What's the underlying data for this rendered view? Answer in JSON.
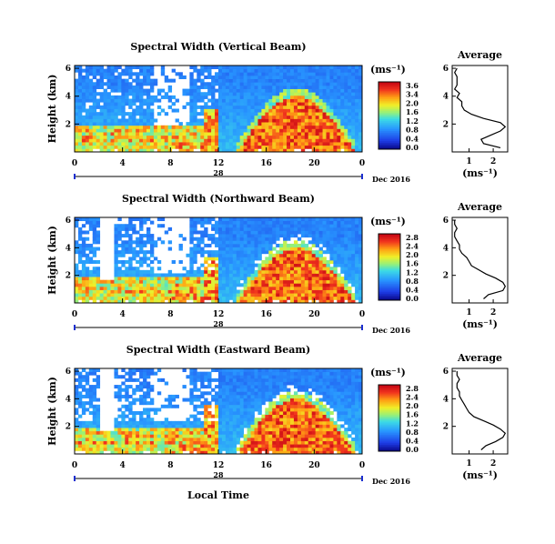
{
  "chart_data": [
    {
      "type": "heatmap",
      "title": "Spectral Width (Vertical Beam)",
      "ylabel": "Height (km)",
      "y_ticks": [
        "6",
        "4",
        "2"
      ],
      "x_ticks": [
        "0",
        "4",
        "8",
        "12",
        "16",
        "20",
        "0"
      ],
      "day_label": "28",
      "date_label": "Dec 2016",
      "colorbar_unit": "(ms⁻¹)",
      "colorbar_ticks": [
        "3.6",
        "3.4",
        "2.0",
        "1.6",
        "1.2",
        "0.8",
        "0.4",
        "0.0"
      ],
      "colorbar_range": [
        0.0,
        3.6
      ],
      "average": {
        "title": "Average",
        "y_ticks": [
          "6",
          "4",
          "2"
        ],
        "x_ticks": [
          "1",
          "2"
        ],
        "xlabel": "(ms⁻¹)",
        "height_km": [
          0.3,
          0.6,
          0.9,
          1.2,
          1.5,
          1.8,
          2.1,
          2.4,
          2.7,
          3.0,
          3.3,
          3.6,
          3.9,
          4.2,
          4.5,
          4.8,
          5.1,
          5.4,
          5.7,
          6.0
        ],
        "values": [
          2.3,
          1.6,
          1.5,
          1.9,
          2.3,
          2.5,
          2.3,
          1.6,
          1.1,
          0.8,
          0.7,
          0.7,
          0.5,
          0.6,
          0.4,
          0.5,
          0.5,
          0.5,
          0.4,
          0.5
        ]
      }
    },
    {
      "type": "heatmap",
      "title": "Spectral Width (Northward Beam)",
      "ylabel": "Height (km)",
      "y_ticks": [
        "6",
        "4",
        "2"
      ],
      "x_ticks": [
        "0",
        "4",
        "8",
        "12",
        "16",
        "20",
        "0"
      ],
      "day_label": "28",
      "date_label": "Dec 2016",
      "colorbar_unit": "(ms⁻¹)",
      "colorbar_ticks": [
        "2.8",
        "2.4",
        "2.0",
        "1.6",
        "1.2",
        "0.8",
        "0.4",
        "0.0"
      ],
      "colorbar_range": [
        0.0,
        2.8
      ],
      "average": {
        "title": "Average",
        "y_ticks": [
          "6",
          "4",
          "2"
        ],
        "x_ticks": [
          "1",
          "2"
        ],
        "xlabel": "(ms⁻¹)",
        "height_km": [
          0.3,
          0.6,
          0.9,
          1.2,
          1.5,
          1.8,
          2.1,
          2.4,
          2.7,
          3.0,
          3.3,
          3.6,
          3.9,
          4.2,
          4.5,
          4.8,
          5.1,
          5.4,
          5.7,
          6.0
        ],
        "values": [
          1.6,
          1.8,
          2.4,
          2.5,
          2.4,
          2.1,
          1.7,
          1.4,
          1.1,
          1.0,
          0.9,
          0.7,
          0.6,
          0.6,
          0.5,
          0.4,
          0.4,
          0.5,
          0.4,
          0.4
        ]
      }
    },
    {
      "type": "heatmap",
      "title": "Spectral Width (Eastward Beam)",
      "ylabel": "Height (km)",
      "y_ticks": [
        "6",
        "4",
        "2"
      ],
      "x_ticks": [
        "0",
        "4",
        "8",
        "12",
        "16",
        "20",
        "0"
      ],
      "day_label": "28",
      "date_label": "Dec 2016",
      "colorbar_unit": "(ms⁻¹)",
      "colorbar_ticks": [
        "2.8",
        "2.4",
        "2.0",
        "1.6",
        "1.2",
        "0.8",
        "0.4",
        "0.0"
      ],
      "colorbar_range": [
        0.0,
        2.8
      ],
      "xlabel": "Local Time",
      "average": {
        "title": "Average",
        "y_ticks": [
          "6",
          "4",
          "2"
        ],
        "x_ticks": [
          "1",
          "2"
        ],
        "xlabel": "(ms⁻¹)",
        "height_km": [
          0.3,
          0.6,
          0.9,
          1.2,
          1.5,
          1.8,
          2.1,
          2.4,
          2.7,
          3.0,
          3.3,
          3.6,
          3.9,
          4.2,
          4.5,
          4.8,
          5.1,
          5.4,
          5.7,
          6.0
        ],
        "values": [
          1.5,
          1.7,
          2.1,
          2.4,
          2.5,
          2.3,
          2.0,
          1.6,
          1.2,
          1.0,
          0.9,
          0.8,
          0.7,
          0.6,
          0.6,
          0.5,
          0.5,
          0.6,
          0.5,
          0.5
        ]
      }
    }
  ]
}
